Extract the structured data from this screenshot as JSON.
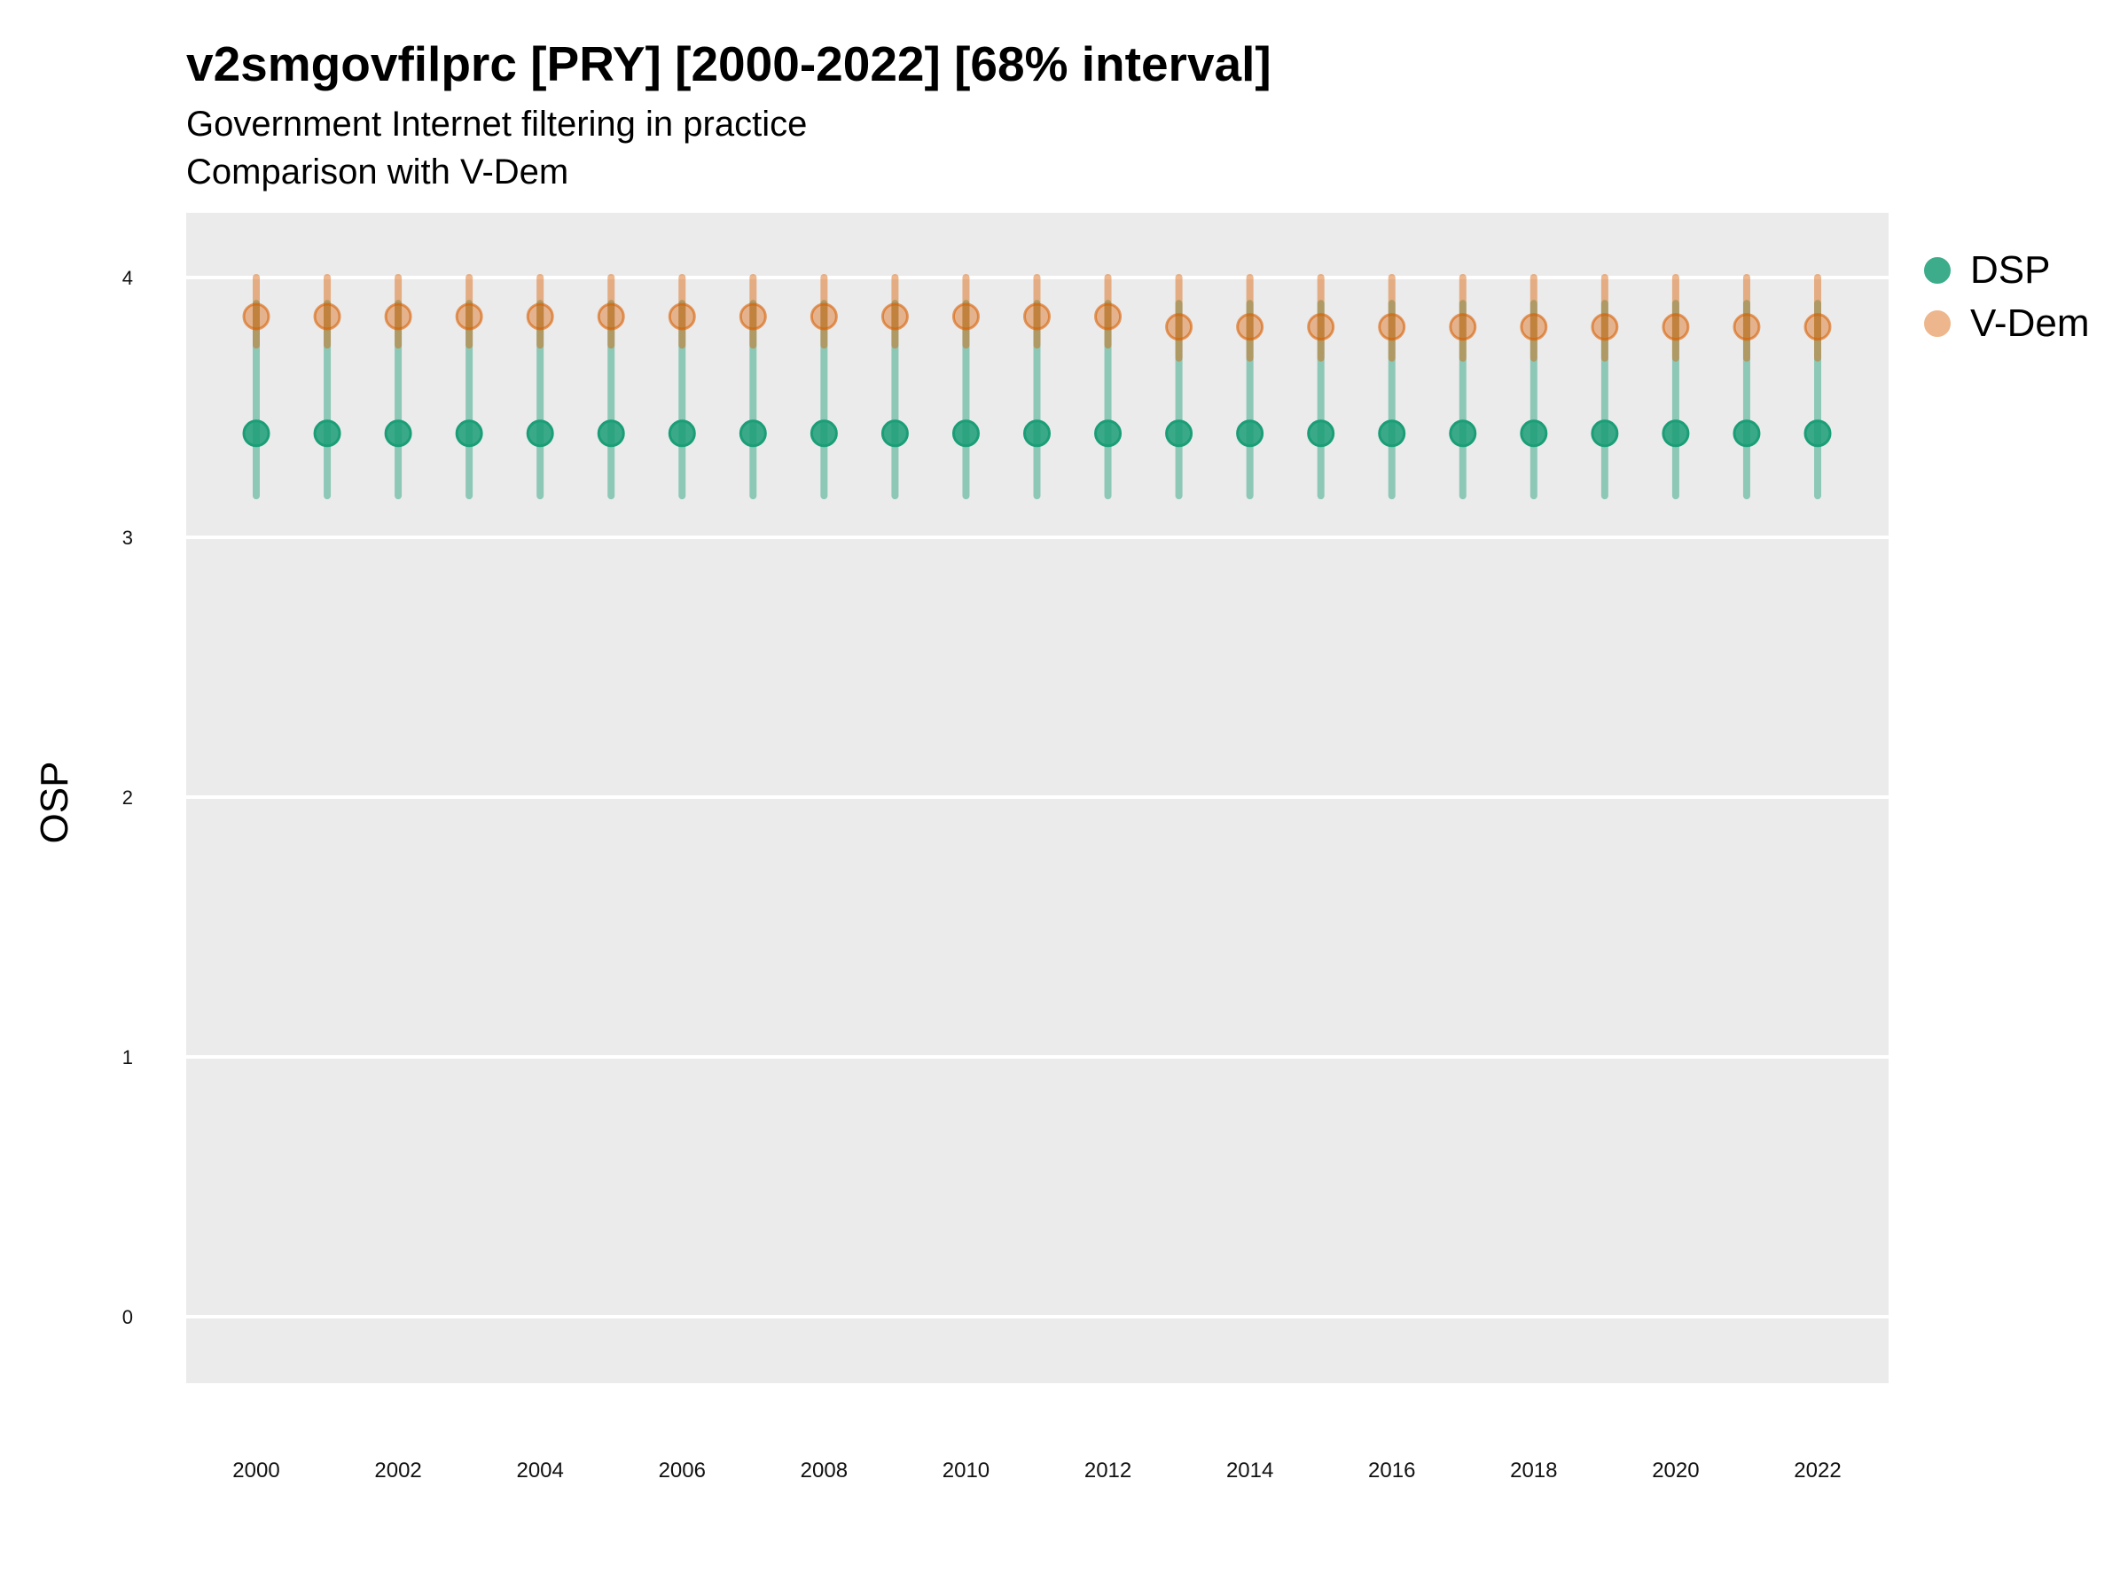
{
  "chart_data": {
    "type": "scatter",
    "title": "v2smgovfilprc [PRY] [2000-2022] [68% interval]",
    "subtitle": "Government Internet filtering in practice",
    "caption": "Comparison with V-Dem",
    "xlabel": "",
    "ylabel": "OSP",
    "xlim": [
      1999,
      2023
    ],
    "ylim": [
      -0.25,
      4.25
    ],
    "x_ticks": [
      "2000",
      "2002",
      "2004",
      "2006",
      "2008",
      "2010",
      "2012",
      "2014",
      "2016",
      "2018",
      "2020",
      "2022"
    ],
    "y_ticks": [
      "0",
      "1",
      "2",
      "3",
      "4"
    ],
    "grid": true,
    "legend_position": "right",
    "x": [
      2000,
      2001,
      2002,
      2003,
      2004,
      2005,
      2006,
      2007,
      2008,
      2009,
      2010,
      2011,
      2012,
      2013,
      2014,
      2015,
      2016,
      2017,
      2018,
      2019,
      2020,
      2021,
      2022
    ],
    "series": [
      {
        "name": "DSP",
        "color": "#1b9e77",
        "values": [
          3.4,
          3.4,
          3.4,
          3.4,
          3.4,
          3.4,
          3.4,
          3.4,
          3.4,
          3.4,
          3.4,
          3.4,
          3.4,
          3.4,
          3.4,
          3.4,
          3.4,
          3.4,
          3.4,
          3.4,
          3.4,
          3.4,
          3.4
        ],
        "lower": [
          3.16,
          3.16,
          3.16,
          3.16,
          3.16,
          3.16,
          3.16,
          3.16,
          3.16,
          3.16,
          3.16,
          3.16,
          3.16,
          3.16,
          3.16,
          3.16,
          3.16,
          3.16,
          3.16,
          3.16,
          3.16,
          3.16,
          3.16
        ],
        "upper": [
          3.9,
          3.9,
          3.9,
          3.9,
          3.9,
          3.9,
          3.9,
          3.9,
          3.9,
          3.9,
          3.9,
          3.9,
          3.9,
          3.9,
          3.9,
          3.9,
          3.9,
          3.9,
          3.9,
          3.9,
          3.9,
          3.9,
          3.9
        ]
      },
      {
        "name": "V-Dem",
        "color": "#d95f02",
        "values": [
          3.85,
          3.85,
          3.85,
          3.85,
          3.85,
          3.85,
          3.85,
          3.85,
          3.85,
          3.85,
          3.85,
          3.85,
          3.85,
          3.81,
          3.81,
          3.81,
          3.81,
          3.81,
          3.81,
          3.81,
          3.81,
          3.81,
          3.81
        ],
        "lower": [
          3.74,
          3.74,
          3.74,
          3.74,
          3.74,
          3.74,
          3.74,
          3.74,
          3.74,
          3.74,
          3.74,
          3.74,
          3.74,
          3.69,
          3.69,
          3.69,
          3.69,
          3.69,
          3.69,
          3.69,
          3.69,
          3.69,
          3.69
        ],
        "upper": [
          4.0,
          4.0,
          4.0,
          4.0,
          4.0,
          4.0,
          4.0,
          4.0,
          4.0,
          4.0,
          4.0,
          4.0,
          4.0,
          4.0,
          4.0,
          4.0,
          4.0,
          4.0,
          4.0,
          4.0,
          4.0,
          4.0,
          4.0
        ]
      }
    ]
  }
}
